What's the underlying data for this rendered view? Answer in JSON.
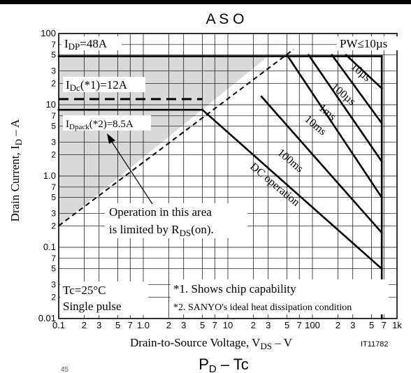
{
  "chart_data": {
    "type": "line",
    "title": "A S O",
    "xlabel": "Drain-to-Source Voltage, VDS – V",
    "ylabel": "Drain Current, ID – A",
    "x_scale": "log",
    "y_scale": "log",
    "xlim": [
      0.1,
      1000
    ],
    "ylim": [
      0.01,
      100
    ],
    "grid": true,
    "x_ticks": [
      {
        "v": 0.1,
        "t": "0.1"
      },
      {
        "v": 0.2,
        "t": "2"
      },
      {
        "v": 0.3,
        "t": "3"
      },
      {
        "v": 0.5,
        "t": "5"
      },
      {
        "v": 0.7,
        "t": "7"
      },
      {
        "v": 1,
        "t": "1.0"
      },
      {
        "v": 2,
        "t": "2"
      },
      {
        "v": 3,
        "t": "3"
      },
      {
        "v": 5,
        "t": "5"
      },
      {
        "v": 7,
        "t": "7"
      },
      {
        "v": 10,
        "t": "10"
      },
      {
        "v": 20,
        "t": "2"
      },
      {
        "v": 30,
        "t": "3"
      },
      {
        "v": 50,
        "t": "5"
      },
      {
        "v": 70,
        "t": "7"
      },
      {
        "v": 100,
        "t": "100"
      },
      {
        "v": 200,
        "t": "2"
      },
      {
        "v": 300,
        "t": "3"
      },
      {
        "v": 500,
        "t": "5"
      },
      {
        "v": 700,
        "t": "7"
      },
      {
        "v": 1000,
        "t": "1k"
      }
    ],
    "y_ticks": [
      {
        "v": 100,
        "t": "100"
      },
      {
        "v": 70,
        "t": "7"
      },
      {
        "v": 50,
        "t": "5"
      },
      {
        "v": 30,
        "t": "3"
      },
      {
        "v": 20,
        "t": "2"
      },
      {
        "v": 10,
        "t": "10"
      },
      {
        "v": 7,
        "t": "7"
      },
      {
        "v": 5,
        "t": "5"
      },
      {
        "v": 3,
        "t": "3"
      },
      {
        "v": 2,
        "t": "2"
      },
      {
        "v": 1,
        "t": "1.0"
      },
      {
        "v": 0.7,
        "t": "7"
      },
      {
        "v": 0.5,
        "t": "5"
      },
      {
        "v": 0.3,
        "t": "3"
      },
      {
        "v": 0.2,
        "t": "2"
      },
      {
        "v": 0.1,
        "t": "0.1"
      },
      {
        "v": 0.07,
        "t": "7"
      },
      {
        "v": 0.05,
        "t": "5"
      },
      {
        "v": 0.03,
        "t": "3"
      },
      {
        "v": 0.02,
        "t": "2"
      },
      {
        "v": 0.01,
        "t": "0.01"
      }
    ],
    "series": [
      {
        "name": "10µs",
        "points": [
          [
            250,
            50
          ],
          [
            660,
            17
          ]
        ]
      },
      {
        "name": "100µs",
        "points": [
          [
            170,
            50
          ],
          [
            660,
            5.5
          ]
        ]
      },
      {
        "name": "1ms",
        "points": [
          [
            90,
            50
          ],
          [
            660,
            1.6
          ]
        ]
      },
      {
        "name": "10ms",
        "points": [
          [
            50,
            50
          ],
          [
            660,
            0.5
          ]
        ]
      },
      {
        "name": "100ms",
        "points": [
          [
            25,
            13
          ],
          [
            660,
            0.16
          ]
        ]
      },
      {
        "name": "DC operation",
        "points": [
          [
            5,
            8.5
          ],
          [
            660,
            0.05
          ]
        ]
      }
    ],
    "rds_on_limit": [
      [
        0.1,
        0.2
      ],
      [
        60,
        60
      ]
    ],
    "idp_limit": [
      [
        0.1,
        48
      ],
      [
        660,
        48
      ]
    ],
    "idc_limit": [
      [
        0.1,
        12
      ],
      [
        5,
        12
      ]
    ],
    "idpack_limit": [
      [
        0.1,
        8.5
      ],
      [
        5,
        8.5
      ]
    ],
    "vdss_limit": [
      [
        660,
        48
      ],
      [
        660,
        0.01
      ]
    ],
    "limited_region": [
      [
        0.1,
        48
      ],
      [
        30,
        48
      ],
      [
        0.1,
        0.2
      ]
    ],
    "colors": {
      "shade": "#d9d9d9",
      "ink": "#000000"
    },
    "labels": {
      "idp": {
        "main": "I",
        "sub": "DP",
        "rest": "=48A"
      },
      "pw": "PW≤10µs",
      "idc": {
        "main": "I",
        "sub": "Dc",
        "rest": "(*1)=12A"
      },
      "idpack": {
        "main": "I",
        "sub": "Dpack",
        "rest": "(*2)=8.5A"
      },
      "op_area_1": "Operation in this area",
      "op_area_2": {
        "pre": "is limited by R",
        "sub": "DS",
        "post": "(on)."
      },
      "tc": "Tc=25°C",
      "single_pulse": "Single pulse",
      "note1": "*1. Shows chip capability",
      "note2": "*2. SANYO's ideal heat dissipation condition",
      "curve_10us": "10µs",
      "curve_100us": "100µs",
      "curve_1ms": "1ms",
      "curve_10ms": "10ms",
      "curve_100ms": "100ms",
      "curve_dc": "DC operation"
    },
    "xlabel_parts": {
      "pre": "Drain-to-Source Voltage, V",
      "sub": "DS",
      "post": " – V"
    },
    "ylabel_parts": {
      "pre": "Drain Current, I",
      "sub": "D",
      "post": " – A"
    },
    "figure_id": "IT11782",
    "next_title": {
      "main": "P",
      "sub": "D",
      "post": " – Tc"
    },
    "page_fragment": "45"
  }
}
